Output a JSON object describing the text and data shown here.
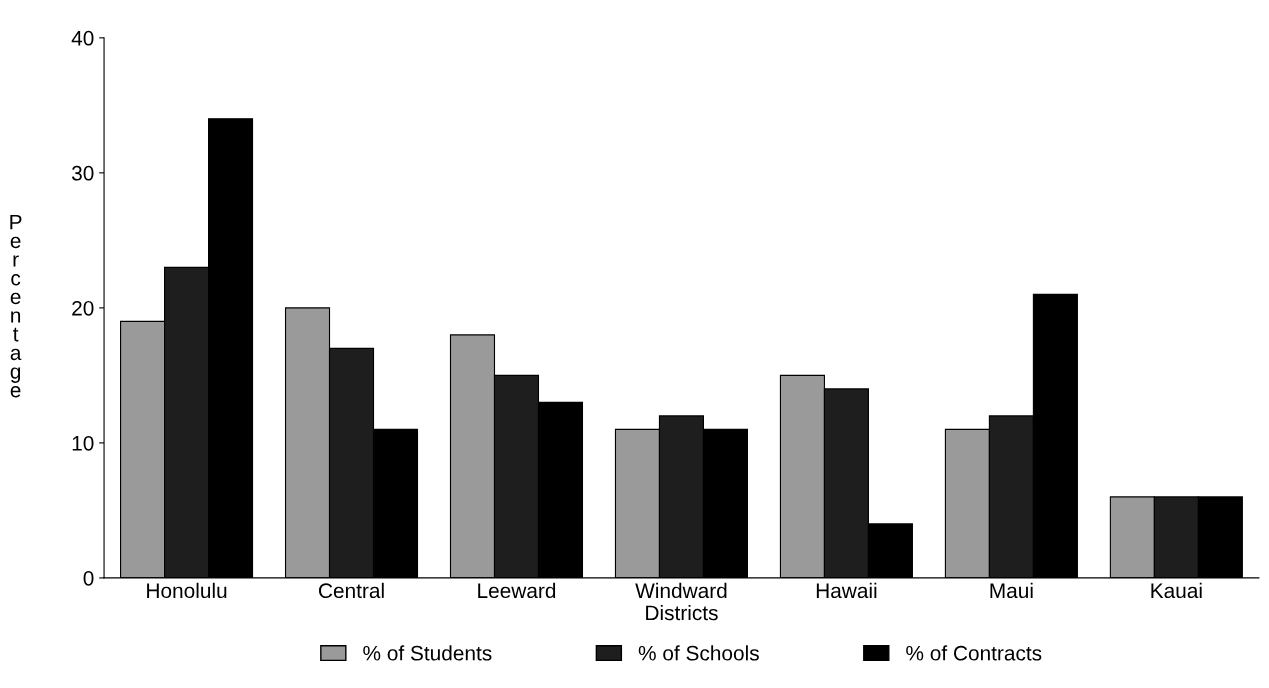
{
  "chart_data": {
    "type": "bar",
    "xlabel": "Districts",
    "ylabel": "Percentage",
    "categories": [
      "Honolulu",
      "Central",
      "Leeward",
      "Windward",
      "Hawaii",
      "Maui",
      "Kauai"
    ],
    "series": [
      {
        "name": "% of Students",
        "color": "#9a9a9a",
        "values": [
          19,
          20,
          18,
          11,
          15,
          11,
          6
        ]
      },
      {
        "name": "% of Schools",
        "color": "#1e1e1e",
        "values": [
          23,
          17,
          15,
          12,
          14,
          12,
          6
        ]
      },
      {
        "name": "% of Contracts",
        "color": "#000000",
        "values": [
          34,
          11,
          13,
          11,
          4,
          21,
          6
        ]
      }
    ],
    "ylim": [
      0,
      40
    ],
    "yticks": [
      0,
      10,
      20,
      30,
      40
    ],
    "grid": false,
    "legend": "bottom"
  }
}
